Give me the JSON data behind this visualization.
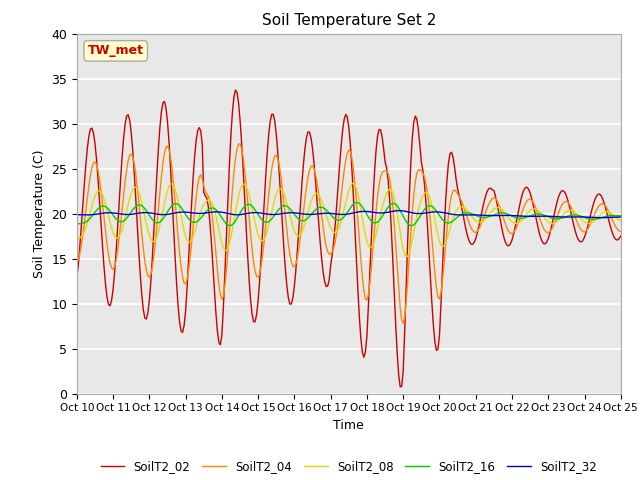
{
  "title": "Soil Temperature Set 2",
  "xlabel": "Time",
  "ylabel": "Soil Temperature (C)",
  "ylim": [
    0,
    40
  ],
  "xlim": [
    0,
    360
  ],
  "bg_color": "#e8e8e8",
  "fig_color": "#ffffff",
  "annotation_text": "TW_met",
  "annotation_bg": "#ffffcc",
  "annotation_border": "#aaaaaa",
  "legend_labels": [
    "SoilT2_02",
    "SoilT2_04",
    "SoilT2_08",
    "SoilT2_16",
    "SoilT2_32"
  ],
  "colors": [
    "#cc0000",
    "#ff8800",
    "#dddd00",
    "#00cc00",
    "#0000cc"
  ],
  "xtick_labels": [
    "Oct 10",
    "Oct 11",
    "Oct 12",
    "Oct 13",
    "Oct 14",
    "Oct 15",
    "Oct 16",
    "Oct 17",
    "Oct 18",
    "Oct 19",
    "Oct 20",
    "Oct 21",
    "Oct 22",
    "Oct 23",
    "Oct 24",
    "Oct 25"
  ],
  "xtick_positions": [
    0,
    24,
    48,
    72,
    96,
    120,
    144,
    168,
    192,
    216,
    240,
    264,
    288,
    312,
    336,
    360
  ]
}
